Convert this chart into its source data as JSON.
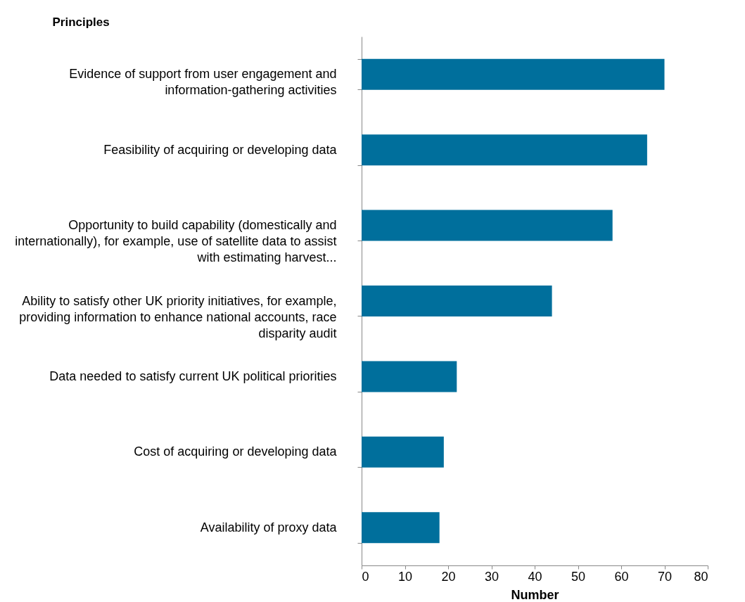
{
  "chart_data": {
    "type": "bar",
    "orientation": "horizontal",
    "ylabel": "Principles",
    "xlabel": "Number",
    "categories": [
      "Evidence of support from user engagement and information-gathering activities",
      "Feasibility of acquiring or developing data",
      "Opportunity to build capability (domestically and internationally), for example, use of satellite data to assist with estimating harvest...",
      "Ability to satisfy other UK priority initiatives, for example, providing information to enhance national accounts, race disparity audit",
      "Data needed to satisfy current UK political priorities",
      "Cost of acquiring or developing data",
      "Availability of proxy data"
    ],
    "values": [
      70,
      66,
      58,
      44,
      22,
      19,
      18
    ],
    "color": "#006f9c",
    "xlim": [
      0,
      80
    ],
    "xticks": [
      0,
      10,
      20,
      30,
      40,
      50,
      60,
      70,
      80
    ],
    "grid": false
  }
}
